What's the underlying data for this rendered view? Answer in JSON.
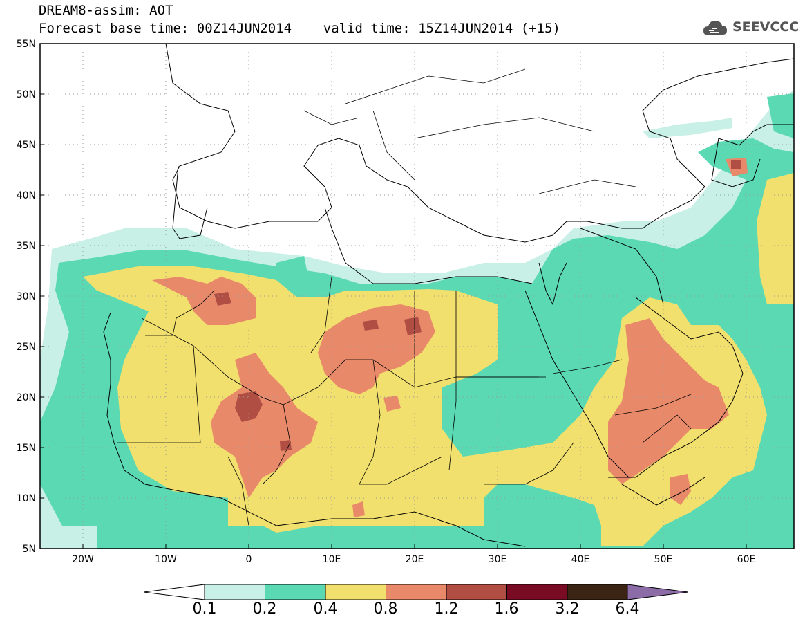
{
  "title": {
    "line1": "DREAM8-assim: AOT",
    "line2": "Forecast base time: 00Z14JUN2014    valid time: 15Z14JUN2014 (+15)"
  },
  "logo": {
    "text": "SEEVCCC",
    "icon": "cloud-icon"
  },
  "map": {
    "extent": {
      "lon": [
        -25,
        65
      ],
      "lat": [
        5,
        55
      ]
    },
    "lat_ticks": [
      "5N",
      "10N",
      "15N",
      "20N",
      "25N",
      "30N",
      "35N",
      "40N",
      "45N",
      "50N",
      "55N"
    ],
    "lon_ticks": [
      "20W",
      "10W",
      "0",
      "10E",
      "20E",
      "30E",
      "40E",
      "50E",
      "60E"
    ],
    "grid": "dotted"
  },
  "colorbar": {
    "labels": [
      "0.1",
      "0.2",
      "0.4",
      "0.8",
      "1.2",
      "1.6",
      "3.2",
      "6.4"
    ],
    "colors": [
      "#c8f0e6",
      "#5ad9b3",
      "#f2e06e",
      "#e88a6a",
      "#b04e44",
      "#7a0b24",
      "#3c2415",
      "#8c6ca6"
    ],
    "extend": "both"
  }
}
